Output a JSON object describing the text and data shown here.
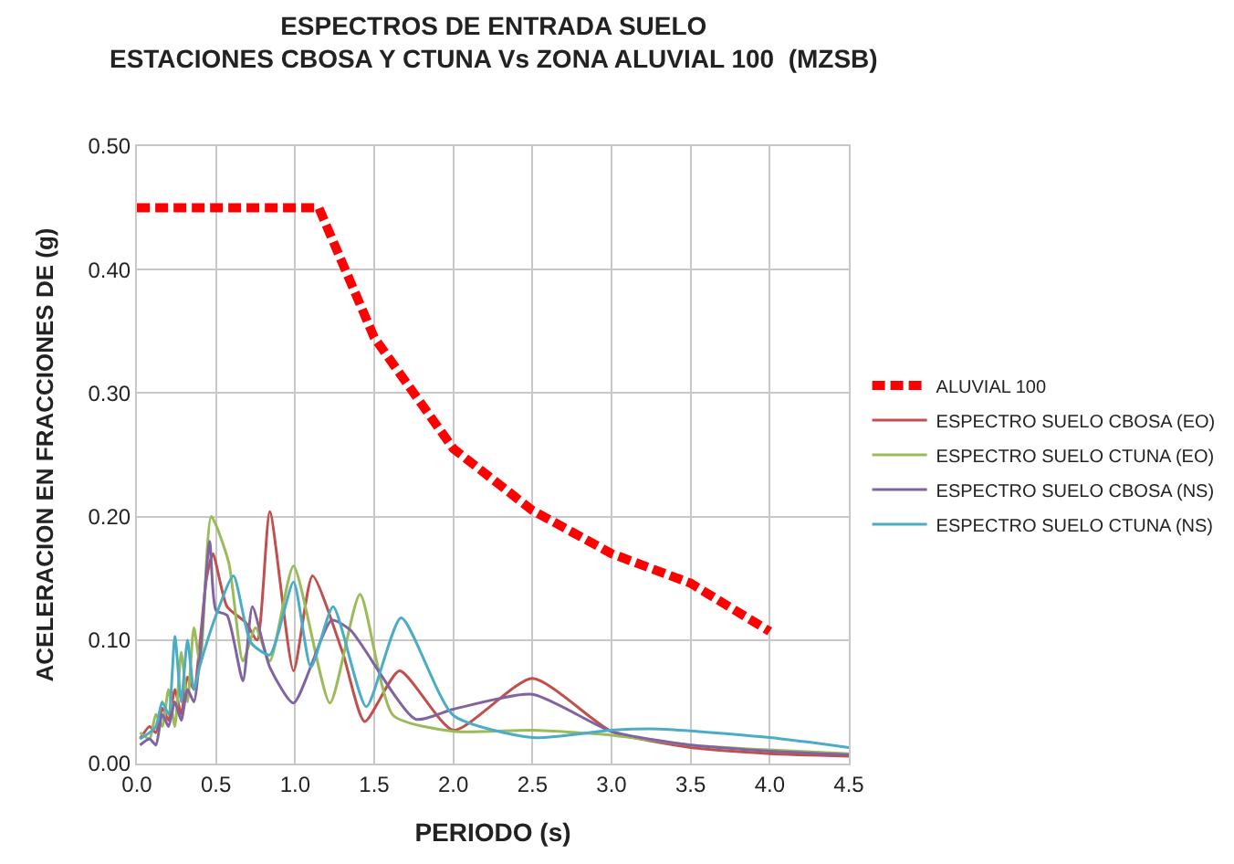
{
  "chart_data": {
    "type": "line",
    "title": "ESPECTROS DE ENTRADA SUELO\nESTACIONES CBOSA Y CTUNA Vs ZONA ALUVIAL 100  (MZSB)",
    "xlabel": "PERIODO (s)",
    "ylabel": "ACELERACION EN FRACCIONES DE (g)",
    "xlim": [
      0,
      4.5
    ],
    "xticks": [
      {
        "value": 0,
        "label": "0.0"
      },
      {
        "value": 0.5,
        "label": "0.5"
      },
      {
        "value": 1,
        "label": "1.0"
      },
      {
        "value": 1.5,
        "label": "1.5"
      },
      {
        "value": 2,
        "label": "2.0"
      },
      {
        "value": 2.5,
        "label": "2.5"
      },
      {
        "value": 3,
        "label": "3.0"
      },
      {
        "value": 3.5,
        "label": "3.5"
      },
      {
        "value": 4,
        "label": "4.0"
      },
      {
        "value": 4.5,
        "label": "4.5"
      }
    ],
    "ylim": [
      0,
      0.5
    ],
    "yticks": [
      {
        "value": 0,
        "label": "0.00"
      },
      {
        "value": 0.1,
        "label": "0.10"
      },
      {
        "value": 0.2,
        "label": "0.20"
      },
      {
        "value": 0.3,
        "label": "0.30"
      },
      {
        "value": 0.4,
        "label": "0.40"
      },
      {
        "value": 0.5,
        "label": "0.50"
      }
    ],
    "grid": true,
    "legend": "right",
    "marker": "none",
    "series": [
      {
        "name": "ALUVIAL 100",
        "color": "#ff0000",
        "line_style": "dashed",
        "x": [
          0,
          1.15,
          1.5,
          1.75,
          2.0,
          2.5,
          3.0,
          3.5,
          4.0
        ],
        "values": [
          0.45,
          0.45,
          0.345,
          0.3,
          0.255,
          0.205,
          0.17,
          0.146,
          0.107
        ]
      },
      {
        "name": "ESPECTRO SUELO CBOSA (EO)",
        "color": "#c0504d",
        "x": [
          0.02,
          0.08,
          0.12,
          0.16,
          0.2,
          0.24,
          0.28,
          0.32,
          0.36,
          0.4,
          0.44,
          0.48,
          0.57,
          0.69,
          0.76,
          0.84,
          0.99,
          1.11,
          1.3,
          1.44,
          1.66,
          2.0,
          2.5,
          3.0,
          3.5,
          4.0,
          4.5
        ],
        "values": [
          0.02,
          0.03,
          0.025,
          0.045,
          0.035,
          0.06,
          0.04,
          0.07,
          0.06,
          0.1,
          0.15,
          0.17,
          0.127,
          0.114,
          0.1,
          0.204,
          0.075,
          0.152,
          0.09,
          0.034,
          0.075,
          0.027,
          0.069,
          0.026,
          0.013,
          0.008,
          0.006
        ]
      },
      {
        "name": "ESPECTRO SUELO CTUNA (EO)",
        "color": "#9bbb59",
        "x": [
          0.02,
          0.08,
          0.12,
          0.16,
          0.2,
          0.24,
          0.28,
          0.32,
          0.36,
          0.4,
          0.47,
          0.58,
          0.67,
          0.75,
          0.84,
          0.99,
          1.22,
          1.41,
          1.62,
          2.0,
          2.5,
          3.0,
          3.5,
          4.0,
          4.5
        ],
        "values": [
          0.025,
          0.02,
          0.04,
          0.03,
          0.06,
          0.03,
          0.09,
          0.05,
          0.11,
          0.08,
          0.2,
          0.163,
          0.083,
          0.11,
          0.083,
          0.16,
          0.049,
          0.137,
          0.039,
          0.026,
          0.027,
          0.023,
          0.015,
          0.011,
          0.008
        ]
      },
      {
        "name": "ESPECTRO SUELO CBOSA (NS)",
        "color": "#8064a2",
        "x": [
          0.02,
          0.08,
          0.12,
          0.16,
          0.2,
          0.24,
          0.28,
          0.32,
          0.36,
          0.4,
          0.46,
          0.5,
          0.57,
          0.67,
          0.73,
          0.84,
          0.99,
          1.23,
          1.35,
          1.76,
          2.0,
          2.5,
          3.0,
          3.5,
          4.0,
          4.5
        ],
        "values": [
          0.015,
          0.02,
          0.015,
          0.04,
          0.03,
          0.05,
          0.035,
          0.06,
          0.05,
          0.09,
          0.18,
          0.124,
          0.12,
          0.067,
          0.127,
          0.078,
          0.049,
          0.116,
          0.108,
          0.036,
          0.044,
          0.056,
          0.026,
          0.015,
          0.01,
          0.007
        ]
      },
      {
        "name": "ESPECTRO SUELO CTUNA (NS)",
        "color": "#4bacc6",
        "x": [
          0.02,
          0.08,
          0.12,
          0.16,
          0.2,
          0.24,
          0.28,
          0.32,
          0.36,
          0.4,
          0.5,
          0.61,
          0.72,
          0.84,
          0.99,
          1.1,
          1.24,
          1.45,
          1.67,
          2.0,
          2.5,
          3.0,
          3.3,
          4.0,
          4.5
        ],
        "values": [
          0.02,
          0.025,
          0.03,
          0.05,
          0.04,
          0.103,
          0.05,
          0.1,
          0.06,
          0.08,
          0.12,
          0.152,
          0.098,
          0.088,
          0.147,
          0.078,
          0.127,
          0.046,
          0.118,
          0.039,
          0.021,
          0.027,
          0.028,
          0.021,
          0.013
        ]
      }
    ]
  }
}
